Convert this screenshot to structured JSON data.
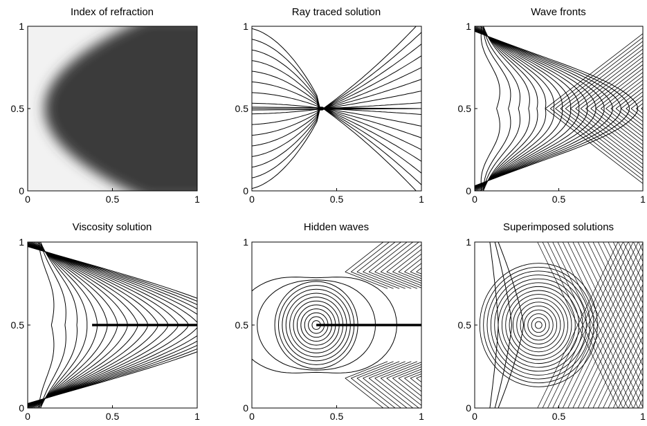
{
  "chart_data": [
    {
      "type": "heatmap",
      "title": "Index of refraction",
      "xlim": [
        0,
        1
      ],
      "ylim": [
        0,
        1
      ],
      "xticks": [
        "0",
        "0.5",
        "1"
      ],
      "yticks": [
        "0",
        "0.5",
        "1"
      ],
      "grid": false,
      "colors": {
        "low_index": "#f2f2f2",
        "high_index": "#3a3a3a"
      },
      "boundary_vertex": [
        0.1,
        0.5
      ]
    },
    {
      "type": "line",
      "title": "Ray traced solution",
      "xlim": [
        0,
        1
      ],
      "ylim": [
        0,
        1
      ],
      "xticks": [
        "0",
        "0.5",
        "1"
      ],
      "yticks": [
        "0",
        "0.5",
        "1"
      ],
      "grid": false,
      "focus": [
        0.42,
        0.5
      ]
    },
    {
      "type": "line",
      "title": "Wave fronts",
      "xlim": [
        0,
        1
      ],
      "ylim": [
        0,
        1
      ],
      "xticks": [
        "0",
        "0.5",
        "1"
      ],
      "yticks": [
        "0",
        "0.5",
        "1"
      ],
      "grid": false,
      "caustic_tip": [
        0.42,
        0.5
      ]
    },
    {
      "type": "line",
      "title": "Viscosity solution",
      "xlim": [
        0,
        1
      ],
      "ylim": [
        0,
        1
      ],
      "xticks": [
        "0",
        "0.5",
        "1"
      ],
      "yticks": [
        "0",
        "0.5",
        "1"
      ],
      "grid": false,
      "shock_line": {
        "x": [
          0.38,
          1.0
        ],
        "y": 0.5
      }
    },
    {
      "type": "line",
      "title": "Hidden waves",
      "xlim": [
        0,
        1
      ],
      "ylim": [
        0,
        1
      ],
      "xticks": [
        "0",
        "0.5",
        "1"
      ],
      "yticks": [
        "0",
        "0.5",
        "1"
      ],
      "grid": false,
      "source": [
        0.38,
        0.5
      ],
      "shock_line": {
        "x": [
          0.38,
          1.0
        ],
        "y": 0.5
      }
    },
    {
      "type": "line",
      "title": "Superimposed solutions",
      "xlim": [
        0,
        1
      ],
      "ylim": [
        0,
        1
      ],
      "xticks": [
        "0",
        "0.5",
        "1"
      ],
      "yticks": [
        "0",
        "0.5",
        "1"
      ],
      "grid": false,
      "source": [
        0.38,
        0.5
      ]
    }
  ]
}
